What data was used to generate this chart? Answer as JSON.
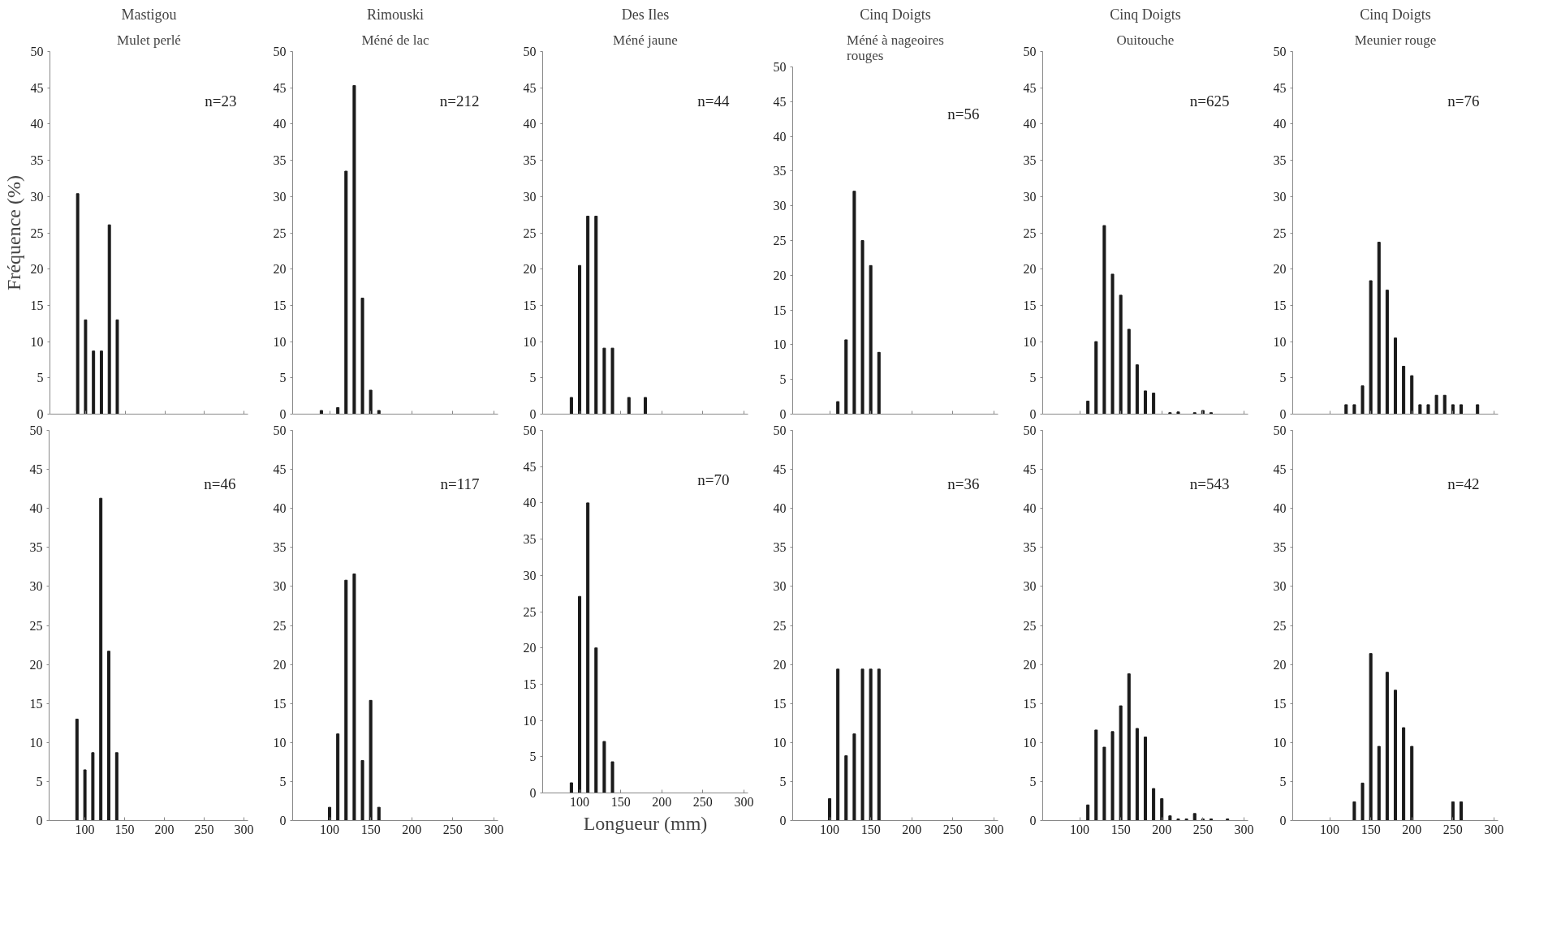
{
  "chart_data": [
    {
      "type": "bar",
      "title": "Mastigou",
      "subtitle": "Mulet perlé",
      "ylabel": "Fréquence (%)",
      "annotations": [
        "n=23"
      ],
      "color": "#1a1a1a",
      "x": [
        90,
        100,
        110,
        120,
        130,
        140
      ],
      "values": [
        30.4,
        13,
        8.7,
        8.7,
        26.1,
        13
      ],
      "xlim": [
        55,
        305
      ],
      "xticks": [
        100,
        150,
        200,
        250,
        300
      ],
      "ylim": [
        0,
        50
      ],
      "yticks": [
        0,
        5,
        10,
        15,
        20,
        25,
        30,
        35,
        40,
        45,
        50
      ],
      "tick_labels": "y",
      "grid": false
    },
    {
      "type": "bar",
      "title": "Rimouski",
      "subtitle": "Méné de lac",
      "annotations": [
        "n=212"
      ],
      "color": "#1a1a1a",
      "x": [
        90,
        110,
        120,
        130,
        140,
        150,
        160
      ],
      "values": [
        0.5,
        0.9,
        33.5,
        45.3,
        16,
        3.3,
        0.5
      ],
      "xlim": [
        55,
        305
      ],
      "xticks": [
        100,
        150,
        200,
        250,
        300
      ],
      "ylim": [
        0,
        50
      ],
      "yticks": [
        0,
        5,
        10,
        15,
        20,
        25,
        30,
        35,
        40,
        45,
        50
      ],
      "tick_labels": "y",
      "grid": false
    },
    {
      "type": "bar",
      "title": "Des Iles",
      "subtitle": "Méné jaune",
      "annotations": [
        "n=44"
      ],
      "color": "#1a1a1a",
      "x": [
        90,
        100,
        110,
        120,
        130,
        140,
        160,
        180
      ],
      "values": [
        2.3,
        20.5,
        27.3,
        27.3,
        9.1,
        9.1,
        2.3,
        2.3
      ],
      "xlim": [
        55,
        305
      ],
      "xticks": [
        100,
        150,
        200,
        250,
        300
      ],
      "ylim": [
        0,
        50
      ],
      "yticks": [
        0,
        5,
        10,
        15,
        20,
        25,
        30,
        35,
        40,
        45,
        50
      ],
      "tick_labels": "y",
      "grid": false
    },
    {
      "type": "bar",
      "title": "Cinq Doigts",
      "subtitle": "Méné à nageoires rouges",
      "annotations": [
        "n=56"
      ],
      "color": "#1a1a1a",
      "x": [
        110,
        120,
        130,
        140,
        150,
        160
      ],
      "values": [
        1.8,
        10.7,
        32.1,
        25,
        21.4,
        8.9
      ],
      "xlim": [
        55,
        305
      ],
      "xticks": [
        100,
        150,
        200,
        250,
        300
      ],
      "ylim": [
        0,
        50
      ],
      "yticks": [
        0,
        5,
        10,
        15,
        20,
        25,
        30,
        35,
        40,
        45,
        50
      ],
      "tick_labels": "y",
      "grid": false
    },
    {
      "type": "bar",
      "title": "Cinq Doigts",
      "subtitle": "Ouitouche",
      "annotations": [
        "n=625"
      ],
      "color": "#1a1a1a",
      "x": [
        110,
        120,
        130,
        140,
        150,
        160,
        170,
        180,
        190,
        210,
        220,
        240,
        250,
        260
      ],
      "values": [
        1.8,
        10,
        26,
        19.3,
        16.4,
        11.7,
        6.8,
        3.2,
        2.9,
        0.2,
        0.3,
        0.2,
        0.5,
        0.2
      ],
      "xlim": [
        55,
        305
      ],
      "xticks": [
        100,
        150,
        200,
        250,
        300
      ],
      "ylim": [
        0,
        50
      ],
      "yticks": [
        0,
        5,
        10,
        15,
        20,
        25,
        30,
        35,
        40,
        45,
        50
      ],
      "tick_labels": "y",
      "grid": false
    },
    {
      "type": "bar",
      "title": "Cinq Doigts",
      "subtitle": "Meunier rouge",
      "annotations": [
        "n=76"
      ],
      "color": "#1a1a1a",
      "x": [
        120,
        130,
        140,
        150,
        160,
        170,
        180,
        190,
        200,
        210,
        220,
        230,
        240,
        250,
        260,
        280
      ],
      "values": [
        1.3,
        1.3,
        3.9,
        18.4,
        23.7,
        17.1,
        10.5,
        6.6,
        5.3,
        1.3,
        1.3,
        2.6,
        2.6,
        1.3,
        1.3,
        1.3
      ],
      "xlim": [
        55,
        305
      ],
      "xticks": [
        100,
        150,
        200,
        250,
        300
      ],
      "ylim": [
        0,
        50
      ],
      "yticks": [
        0,
        5,
        10,
        15,
        20,
        25,
        30,
        35,
        40,
        45,
        50
      ],
      "tick_labels": "y",
      "grid": false
    },
    {
      "type": "bar",
      "annotations": [
        "n=46"
      ],
      "color": "#1a1a1a",
      "x": [
        90,
        100,
        110,
        120,
        130,
        140
      ],
      "values": [
        13,
        6.5,
        8.7,
        41.3,
        21.7,
        8.7
      ],
      "xlim": [
        55,
        305
      ],
      "xticks": [
        100,
        150,
        200,
        250,
        300
      ],
      "ylim": [
        0,
        50
      ],
      "yticks": [
        0,
        5,
        10,
        15,
        20,
        25,
        30,
        35,
        40,
        45,
        50
      ],
      "grid": false
    },
    {
      "type": "bar",
      "annotations": [
        "n=117"
      ],
      "color": "#1a1a1a",
      "x": [
        100,
        110,
        120,
        130,
        140,
        150,
        160
      ],
      "values": [
        1.7,
        11.1,
        30.8,
        31.6,
        7.7,
        15.4,
        1.7
      ],
      "xlim": [
        55,
        305
      ],
      "xticks": [
        100,
        150,
        200,
        250,
        300
      ],
      "ylim": [
        0,
        50
      ],
      "yticks": [
        0,
        5,
        10,
        15,
        20,
        25,
        30,
        35,
        40,
        45,
        50
      ],
      "grid": false
    },
    {
      "type": "bar",
      "xlabel": "Longueur (mm)",
      "annotations": [
        "n=70"
      ],
      "color": "#1a1a1a",
      "x": [
        90,
        100,
        110,
        120,
        130,
        140
      ],
      "values": [
        1.4,
        27.1,
        40,
        20,
        7.1,
        4.3
      ],
      "xlim": [
        55,
        305
      ],
      "xticks": [
        100,
        150,
        200,
        250,
        300
      ],
      "ylim": [
        0,
        50
      ],
      "yticks": [
        0,
        5,
        10,
        15,
        20,
        25,
        30,
        35,
        40,
        45,
        50
      ],
      "grid": false
    },
    {
      "type": "bar",
      "annotations": [
        "n=36"
      ],
      "color": "#1a1a1a",
      "x": [
        100,
        110,
        120,
        130,
        140,
        150,
        160
      ],
      "values": [
        2.8,
        19.4,
        8.3,
        11.1,
        19.4,
        19.4,
        19.4
      ],
      "xlim": [
        55,
        305
      ],
      "xticks": [
        100,
        150,
        200,
        250,
        300
      ],
      "ylim": [
        0,
        50
      ],
      "yticks": [
        0,
        5,
        10,
        15,
        20,
        25,
        30,
        35,
        40,
        45,
        50
      ],
      "grid": false
    },
    {
      "type": "bar",
      "annotations": [
        "n=543"
      ],
      "color": "#1a1a1a",
      "x": [
        110,
        120,
        130,
        140,
        150,
        160,
        170,
        180,
        190,
        200,
        210,
        220,
        230,
        240,
        250,
        260,
        280
      ],
      "values": [
        2,
        11.6,
        9.4,
        11.4,
        14.7,
        18.8,
        11.8,
        10.7,
        4.1,
        2.8,
        0.6,
        0.2,
        0.2,
        0.9,
        0.2,
        0.2,
        0.2
      ],
      "xlim": [
        55,
        305
      ],
      "xticks": [
        100,
        150,
        200,
        250,
        300
      ],
      "ylim": [
        0,
        50
      ],
      "yticks": [
        0,
        5,
        10,
        15,
        20,
        25,
        30,
        35,
        40,
        45,
        50
      ],
      "grid": false
    },
    {
      "type": "bar",
      "annotations": [
        "n=42"
      ],
      "color": "#1a1a1a",
      "x": [
        130,
        140,
        150,
        160,
        170,
        180,
        190,
        200,
        250,
        260
      ],
      "values": [
        2.4,
        4.8,
        21.4,
        9.5,
        19,
        16.7,
        11.9,
        9.5,
        2.4,
        2.4
      ],
      "xlim": [
        55,
        305
      ],
      "xticks": [
        100,
        150,
        200,
        250,
        300
      ],
      "ylim": [
        0,
        50
      ],
      "yticks": [
        0,
        5,
        10,
        15,
        20,
        25,
        30,
        35,
        40,
        45,
        50
      ],
      "grid": false
    }
  ]
}
